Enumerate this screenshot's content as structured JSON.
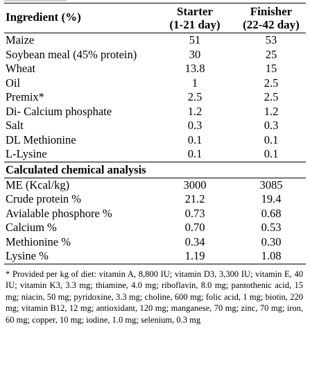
{
  "header": {
    "ingredient_label": "Ingredient (%)",
    "col1_line1": "Starter",
    "col1_line2": "(1-21 day)",
    "col2_line1": "Finisher",
    "col2_line2": "(22-42 day)"
  },
  "ingredients": [
    {
      "name": "Maize",
      "starter": "51",
      "finisher": "53"
    },
    {
      "name": "Soybean meal (45% protein)",
      "starter": "30",
      "finisher": "25"
    },
    {
      "name": "Wheat",
      "starter": "13.8",
      "finisher": "15"
    },
    {
      "name": "Oil",
      "starter": "1",
      "finisher": "2.5"
    },
    {
      "name": "Premix*",
      "starter": "2.5",
      "finisher": "2.5"
    },
    {
      "name": "Di- Calcium phosphate",
      "starter": "1.2",
      "finisher": "1.2"
    },
    {
      "name": "Salt",
      "starter": "0.3",
      "finisher": "0.3"
    },
    {
      "name": "DL Methionine",
      "starter": "0.1",
      "finisher": "0.1"
    },
    {
      "name": "L-Lysine",
      "starter": "0.1",
      "finisher": "0.1"
    }
  ],
  "analysis_heading": "Calculated chemical analysis",
  "analysis": [
    {
      "name": "ME (Kcal/kg)",
      "starter": "3000",
      "finisher": "3085"
    },
    {
      "name": "Crude protein %",
      "starter": "21.2",
      "finisher": "19.4"
    },
    {
      "name": "Avialable phosphore %",
      "starter": "0.73",
      "finisher": "0.68"
    },
    {
      "name": "Calcium %",
      "starter": "0.70",
      "finisher": "0.53"
    },
    {
      "name": "Methionine %",
      "starter": "0.34",
      "finisher": "0.30"
    },
    {
      "name": "Lysine %",
      "starter": "1.19",
      "finisher": "1.08"
    }
  ],
  "footnote": "* Provided per kg of diet: vitamin A, 8,800 IU; vitamin D3, 3,300 IU; vitamin E, 40 IU; vitamin K3, 3.3 mg; thiamine, 4.0 mg; riboflavin, 8.0 mg; pantothenic acid, 15 mg; niacin, 50 mg; pyridoxine, 3.3 mg; choline, 600 mg; folic acid, 1 mg; biotin, 220 mg; vitamin B12, 12 mg; antioxidant, 120 mg; manganese, 70 mg; zinc, 70 mg; iron, 60 mg; copper, 10 mg; iodine, 1.0 mg; selenium, 0.3 mg"
}
